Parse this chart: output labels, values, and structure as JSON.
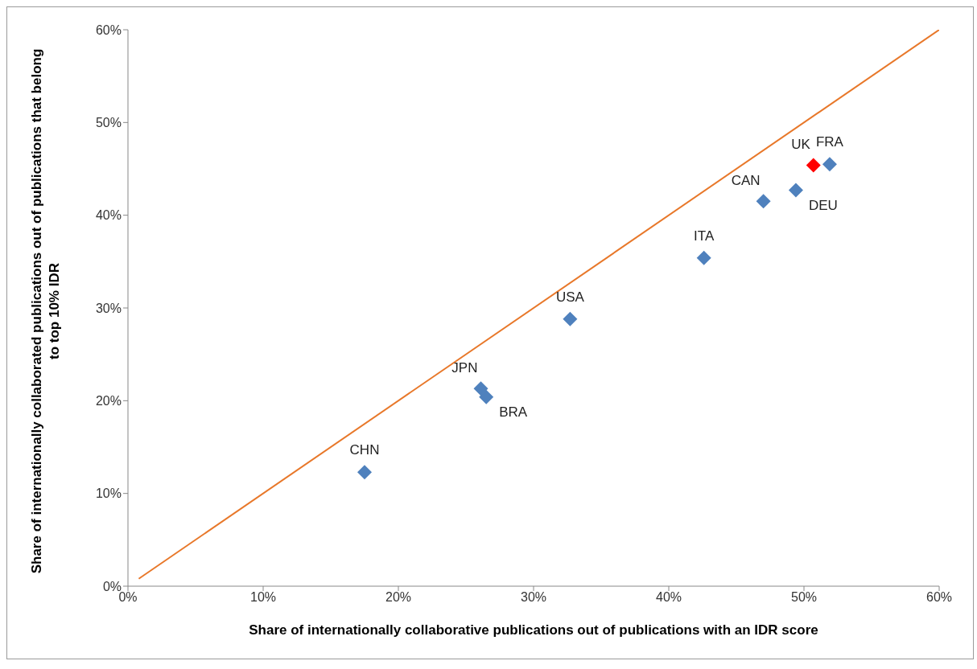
{
  "chart_data": {
    "type": "scatter",
    "xlabel": "Share of internationally collaborative publications out of publications with an IDR score",
    "ylabel": "Share of internationally collaborated publications out of publications that belong to top 10% IDR",
    "xlim": [
      0,
      60
    ],
    "ylim": [
      0,
      60
    ],
    "xticks": [
      {
        "value": 0,
        "label": "0%"
      },
      {
        "value": 10,
        "label": "10%"
      },
      {
        "value": 20,
        "label": "20%"
      },
      {
        "value": 30,
        "label": "30%"
      },
      {
        "value": 40,
        "label": "40%"
      },
      {
        "value": 50,
        "label": "50%"
      },
      {
        "value": 60,
        "label": "60%"
      }
    ],
    "yticks": [
      {
        "value": 0,
        "label": "0%"
      },
      {
        "value": 10,
        "label": "10%"
      },
      {
        "value": 20,
        "label": "20%"
      },
      {
        "value": 30,
        "label": "30%"
      },
      {
        "value": 40,
        "label": "40%"
      },
      {
        "value": 50,
        "label": "50%"
      },
      {
        "value": 60,
        "label": "60%"
      }
    ],
    "series": [
      {
        "marker": "diamond",
        "x": [
          17.5,
          26.1,
          26.5,
          32.7,
          42.6,
          47.0,
          49.4,
          50.7,
          51.9
        ],
        "values": [
          12.3,
          21.3,
          20.4,
          28.8,
          35.4,
          41.5,
          42.7,
          45.4,
          45.5
        ],
        "colors": [
          "#4f81bd",
          "#4f81bd",
          "#4f81bd",
          "#4f81bd",
          "#4f81bd",
          "#4f81bd",
          "#4f81bd",
          "#ff0000",
          "#4f81bd"
        ]
      },
      {
        "type": "line",
        "x": [
          0.8,
          60
        ],
        "values": [
          0.8,
          60
        ],
        "color": "#e8782a"
      }
    ],
    "annotations": [
      {
        "text": "CHN",
        "x": 17.5,
        "y": 12.3
      },
      {
        "text": "JPN",
        "x": 26.1,
        "y": 21.3
      },
      {
        "text": "BRA",
        "x": 26.5,
        "y": 20.4
      },
      {
        "text": "USA",
        "x": 32.7,
        "y": 28.8
      },
      {
        "text": "ITA",
        "x": 42.6,
        "y": 35.4
      },
      {
        "text": "CAN",
        "x": 47.0,
        "y": 41.5
      },
      {
        "text": "DEU",
        "x": 49.4,
        "y": 42.7
      },
      {
        "text": "UK",
        "x": 50.7,
        "y": 45.4
      },
      {
        "text": "FRA",
        "x": 51.9,
        "y": 45.5
      }
    ]
  }
}
